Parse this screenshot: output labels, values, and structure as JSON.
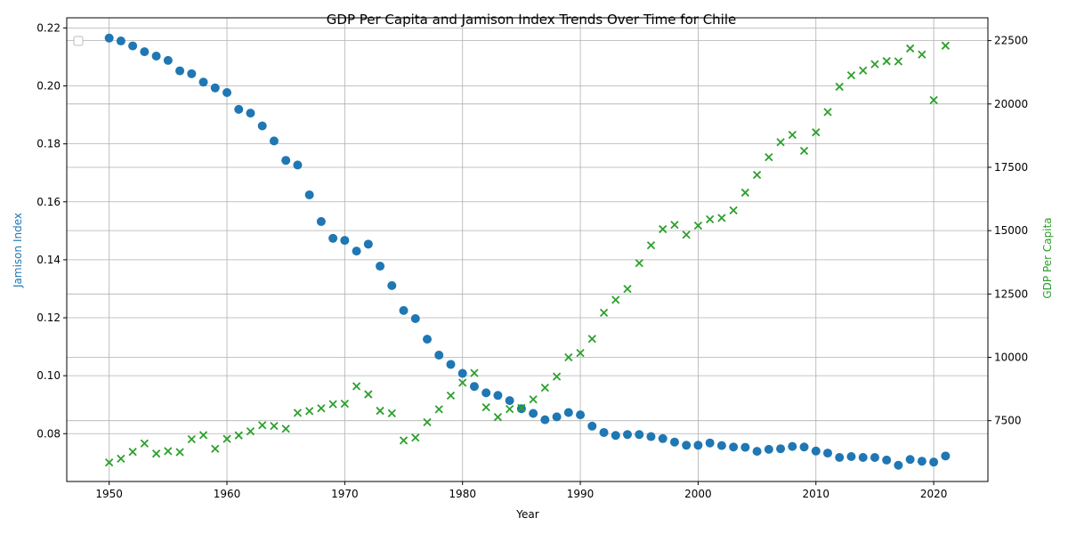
{
  "chart_data": {
    "type": "scatter",
    "title": "GDP Per Capita and Jamison Index Trends Over Time for Chile",
    "xlabel": "Year",
    "ylabel_left": "Jamison Index",
    "ylabel_right": "GDP Per Capita",
    "xlim": [
      1946.4,
      2024.6
    ],
    "ylim_left": [
      0.0635,
      0.2235
    ],
    "ylim_right": [
      5100,
      23400
    ],
    "x_ticks": [
      1950,
      1960,
      1970,
      1980,
      1990,
      2000,
      2010,
      2020
    ],
    "y_ticks_left": [
      0.08,
      0.1,
      0.12,
      0.14,
      0.16,
      0.18,
      0.2,
      0.22
    ],
    "y_ticks_left_labels": [
      "0.08",
      "0.10",
      "0.12",
      "0.14",
      "0.16",
      "0.18",
      "0.20",
      "0.22"
    ],
    "y_ticks_right": [
      7500,
      10000,
      12500,
      15000,
      17500,
      20000,
      22500
    ],
    "grid": true,
    "legend": "top-left",
    "colors": {
      "left": "#1f77b4",
      "right": "#2ca02c"
    },
    "x": [
      1950,
      1951,
      1952,
      1953,
      1954,
      1955,
      1956,
      1957,
      1958,
      1959,
      1960,
      1961,
      1962,
      1963,
      1964,
      1965,
      1966,
      1967,
      1968,
      1969,
      1970,
      1971,
      1972,
      1973,
      1974,
      1975,
      1976,
      1977,
      1978,
      1979,
      1980,
      1981,
      1982,
      1983,
      1984,
      1985,
      1986,
      1987,
      1988,
      1989,
      1990,
      1991,
      1992,
      1993,
      1994,
      1995,
      1996,
      1997,
      1998,
      1999,
      2000,
      2001,
      2002,
      2003,
      2004,
      2005,
      2006,
      2007,
      2008,
      2009,
      2010,
      2011,
      2012,
      2013,
      2014,
      2015,
      2016,
      2017,
      2018,
      2019,
      2020,
      2021
    ],
    "series": [
      {
        "axis": "left",
        "marker": "circle",
        "values": [
          0.2165,
          0.2155,
          0.2138,
          0.2118,
          0.2103,
          0.2088,
          0.2052,
          0.2042,
          0.2013,
          0.1993,
          0.1977,
          0.1919,
          0.1906,
          0.1862,
          0.181,
          0.1743,
          0.1727,
          0.1624,
          0.1532,
          0.1474,
          0.1467,
          0.143,
          0.1454,
          0.1378,
          0.1311,
          0.1225,
          0.1197,
          0.1126,
          0.1071,
          0.1039,
          0.1008,
          0.0963,
          0.0941,
          0.0932,
          0.0914,
          0.0886,
          0.087,
          0.0848,
          0.0858,
          0.0873,
          0.0865,
          0.0826,
          0.0804,
          0.0794,
          0.0797,
          0.0797,
          0.079,
          0.0783,
          0.0771,
          0.076,
          0.076,
          0.0768,
          0.0759,
          0.0754,
          0.0753,
          0.0739,
          0.0746,
          0.0748,
          0.0756,
          0.0754,
          0.074,
          0.0733,
          0.0718,
          0.0721,
          0.0718,
          0.0718,
          0.0709,
          0.0691,
          0.0711,
          0.0705,
          0.0702,
          0.0723
        ]
      },
      {
        "axis": "right",
        "marker": "x",
        "values": [
          5850,
          6000,
          6270,
          6600,
          6200,
          6300,
          6260,
          6770,
          6930,
          6390,
          6780,
          6920,
          7080,
          7320,
          7290,
          7180,
          7810,
          7880,
          7990,
          8150,
          8170,
          8860,
          8540,
          7890,
          7790,
          6720,
          6830,
          7440,
          7950,
          8490,
          9000,
          9380,
          8030,
          7640,
          7960,
          8000,
          8340,
          8800,
          9240,
          10000,
          10170,
          10730,
          11760,
          12270,
          12700,
          13720,
          14420,
          15060,
          15230,
          14840,
          15200,
          15450,
          15500,
          15800,
          16500,
          17200,
          17900,
          18490,
          18780,
          18150,
          18880,
          19680,
          20680,
          21130,
          21320,
          21570,
          21690,
          21680,
          22190,
          21950,
          20150,
          22300
        ]
      }
    ]
  }
}
